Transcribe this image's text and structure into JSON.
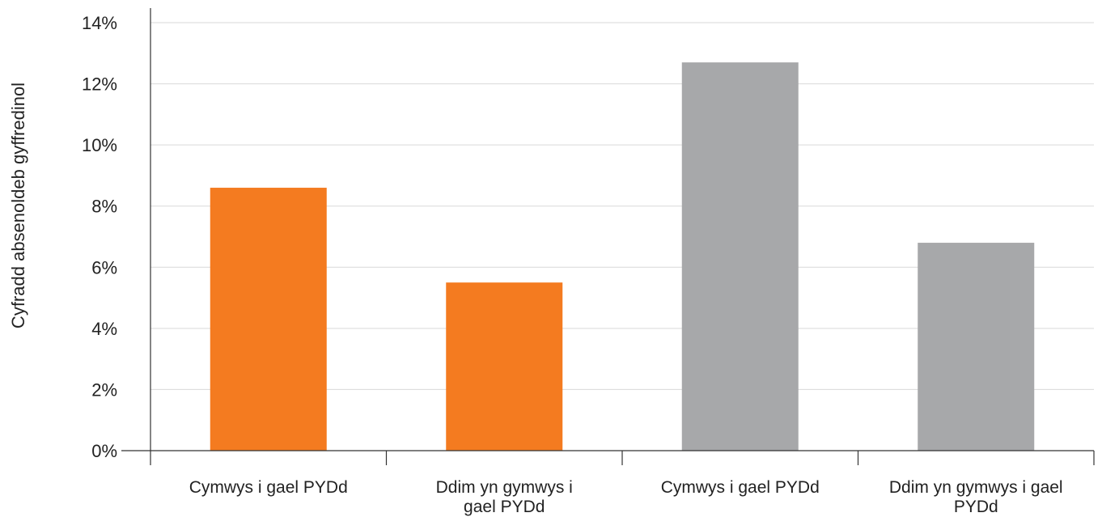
{
  "chart_data": {
    "type": "bar",
    "title": "",
    "xlabel": "",
    "ylabel": "Cyfradd absenoldeb gyffredinol",
    "ylim": [
      0,
      14
    ],
    "yticks": [
      "0%",
      "2%",
      "4%",
      "6%",
      "8%",
      "10%",
      "12%",
      "14%"
    ],
    "ytick_values": [
      0,
      2,
      4,
      6,
      8,
      10,
      12,
      14
    ],
    "grid": true,
    "legend": "none",
    "categories": [
      [
        "Cymwys i gael PYDd"
      ],
      [
        "Ddim yn gymwys i",
        "gael PYDd"
      ],
      [
        "Cymwys i gael PYDd"
      ],
      [
        "Ddim yn gymwys i gael",
        "PYDd"
      ]
    ],
    "values": [
      8.6,
      5.5,
      12.7,
      6.8
    ],
    "colors": [
      "#F47B20",
      "#F47B20",
      "#A7A8AA",
      "#A7A8AA"
    ]
  }
}
